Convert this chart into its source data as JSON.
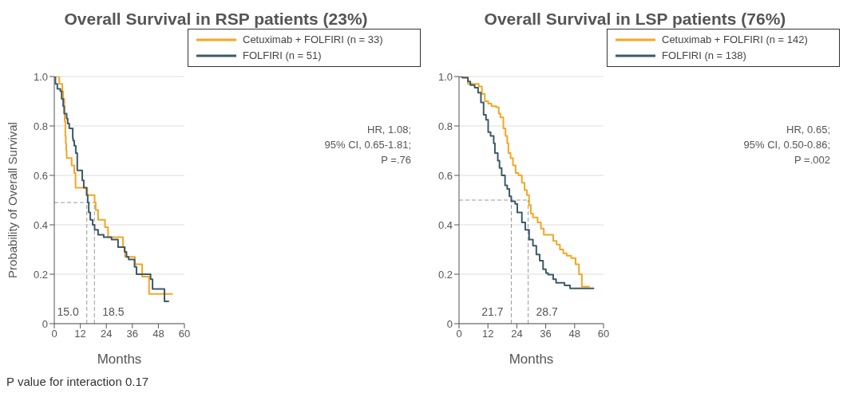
{
  "chart_data": [
    {
      "type": "step",
      "title": "Overall Survival in RSP patients (23%)",
      "xlabel": "Months",
      "ylabel": "Probability of Overall Survival",
      "xlim": [
        0,
        60
      ],
      "xticks": [
        0,
        12,
        24,
        36,
        48,
        60
      ],
      "ylim": [
        0,
        1
      ],
      "yticks": [
        {
          "value": 0,
          "label": "0"
        },
        {
          "value": 0.2,
          "label": "0.2"
        },
        {
          "value": 0.4,
          "label": "0.4"
        },
        {
          "value": 0.6,
          "label": "0.6"
        },
        {
          "value": 0.8,
          "label": "0.8"
        },
        {
          "value": 1,
          "label": "1.0"
        }
      ],
      "grid": "y",
      "legend": "top right",
      "series": [
        {
          "name": "Cetuximab + FOLFIRI (n = 33)",
          "color": "#f5a623",
          "x": [
            0,
            2.3,
            3.7,
            4.1,
            4.6,
            4.8,
            5.1,
            5.3,
            5.5,
            5.7,
            8.0,
            9.2,
            9.8,
            15.2,
            18.6,
            19.1,
            20.2,
            23.4,
            24.8,
            31.7,
            32.6,
            37.2,
            40.5,
            43.7,
            54.7
          ],
          "values": [
            1.0,
            0.97,
            0.94,
            0.91,
            0.85,
            0.82,
            0.76,
            0.73,
            0.7,
            0.67,
            0.64,
            0.61,
            0.55,
            0.52,
            0.49,
            0.46,
            0.42,
            0.39,
            0.35,
            0.31,
            0.27,
            0.24,
            0.19,
            0.12,
            0.12
          ]
        },
        {
          "name": "FOLFIRI (n = 51)",
          "color": "#3d5a66",
          "x": [
            0,
            0.5,
            1.4,
            2.8,
            3.4,
            4.1,
            4.6,
            5.7,
            6.2,
            6.9,
            8.5,
            8.7,
            9.2,
            9.9,
            10.6,
            12.9,
            13.6,
            14.9,
            15.4,
            15.9,
            16.6,
            17.7,
            18.6,
            20.2,
            22.8,
            26.4,
            29.4,
            32.4,
            33.3,
            34.3,
            37.0,
            37.9,
            44.4,
            45.3,
            50.8,
            52.9
          ],
          "values": [
            1.0,
            0.97,
            0.95,
            0.94,
            0.91,
            0.88,
            0.85,
            0.83,
            0.81,
            0.79,
            0.75,
            0.74,
            0.72,
            0.69,
            0.62,
            0.58,
            0.55,
            0.52,
            0.49,
            0.45,
            0.42,
            0.4,
            0.38,
            0.36,
            0.35,
            0.34,
            0.31,
            0.29,
            0.27,
            0.26,
            0.23,
            0.2,
            0.18,
            0.14,
            0.09,
            0.09
          ]
        }
      ],
      "ref_lines": [
        {
          "axis": "y",
          "value": 0.49,
          "color": "#999999",
          "line_style": "dashed"
        },
        {
          "axis": "x",
          "value": 15.0,
          "label": "15.0",
          "color": "#999999",
          "line_style": "dashed"
        },
        {
          "axis": "x",
          "value": 18.5,
          "label": "18.5",
          "color": "#999999",
          "line_style": "dashed"
        }
      ],
      "annotations": [
        "HR, 1.08;",
        "95% CI, 0.65-1.81;",
        "P =.76",
        "P value for interaction 0.17"
      ]
    },
    {
      "type": "step",
      "title": "Overall Survival in LSP patients (76%)",
      "xlabel": "Months",
      "xlim": [
        0,
        60
      ],
      "xticks": [
        0,
        12,
        24,
        36,
        48,
        60
      ],
      "ylim": [
        0,
        1
      ],
      "yticks": [
        {
          "value": 0,
          "label": "0"
        },
        {
          "value": 0.2,
          "label": "0.2"
        },
        {
          "value": 0.4,
          "label": "0.4"
        },
        {
          "value": 0.6,
          "label": "0.6"
        },
        {
          "value": 0.8,
          "label": "0.8"
        },
        {
          "value": 1,
          "label": "1.0"
        }
      ],
      "grid": "y",
      "legend": "top right",
      "series": [
        {
          "name": "Cetuximab + FOLFIRI (n = 142)",
          "color": "#f5a623",
          "x": [
            0,
            3.7,
            7.0,
            8.2,
            9.5,
            10.7,
            12.1,
            13.5,
            15.4,
            16.5,
            17.2,
            18.4,
            19.3,
            20.0,
            20.5,
            21.4,
            22.4,
            23.5,
            24.7,
            26.1,
            27.2,
            28.2,
            29.1,
            29.8,
            30.7,
            32.6,
            34.0,
            35.2,
            37.9,
            39.1,
            40.5,
            41.9,
            43.3,
            44.7,
            46.6,
            48.4,
            49.8,
            51.0,
            54.3
          ],
          "values": [
            1.0,
            0.97,
            0.97,
            0.96,
            0.93,
            0.9,
            0.89,
            0.88,
            0.876,
            0.85,
            0.835,
            0.79,
            0.76,
            0.73,
            0.69,
            0.67,
            0.64,
            0.61,
            0.6,
            0.57,
            0.54,
            0.52,
            0.48,
            0.445,
            0.43,
            0.41,
            0.385,
            0.36,
            0.36,
            0.335,
            0.32,
            0.3,
            0.285,
            0.275,
            0.265,
            0.24,
            0.2,
            0.15,
            0.15
          ]
        },
        {
          "name": "FOLFIRI (n = 138)",
          "color": "#3d5a66",
          "x": [
            0,
            1.4,
            3.7,
            4.7,
            6.5,
            7.9,
            9.1,
            10.2,
            11.2,
            12.1,
            13.1,
            14.4,
            14.9,
            16.1,
            16.8,
            17.7,
            19.1,
            20.0,
            20.9,
            21.7,
            23.3,
            24.2,
            26.1,
            27.5,
            29.1,
            30.7,
            32.1,
            33.5,
            34.9,
            36.1,
            37.0,
            39.1,
            40.3,
            43.8,
            46.1,
            56.1
          ],
          "values": [
            1.0,
            0.995,
            0.98,
            0.965,
            0.955,
            0.935,
            0.895,
            0.845,
            0.825,
            0.775,
            0.76,
            0.73,
            0.69,
            0.66,
            0.63,
            0.6,
            0.56,
            0.545,
            0.515,
            0.495,
            0.485,
            0.45,
            0.41,
            0.38,
            0.34,
            0.315,
            0.28,
            0.255,
            0.22,
            0.205,
            0.198,
            0.18,
            0.165,
            0.155,
            0.143,
            0.143
          ]
        }
      ],
      "ref_lines": [
        {
          "axis": "y",
          "value": 0.5,
          "color": "#999999",
          "line_style": "dashed"
        },
        {
          "axis": "x",
          "value": 21.7,
          "label": "21.7",
          "color": "#999999",
          "line_style": "dashed"
        },
        {
          "axis": "x",
          "value": 28.7,
          "label": "28.7",
          "color": "#999999",
          "line_style": "dashed"
        }
      ],
      "annotations": [
        "HR, 0.65;",
        "95% CI, 0.50-0.86;",
        "P =.002"
      ]
    }
  ]
}
